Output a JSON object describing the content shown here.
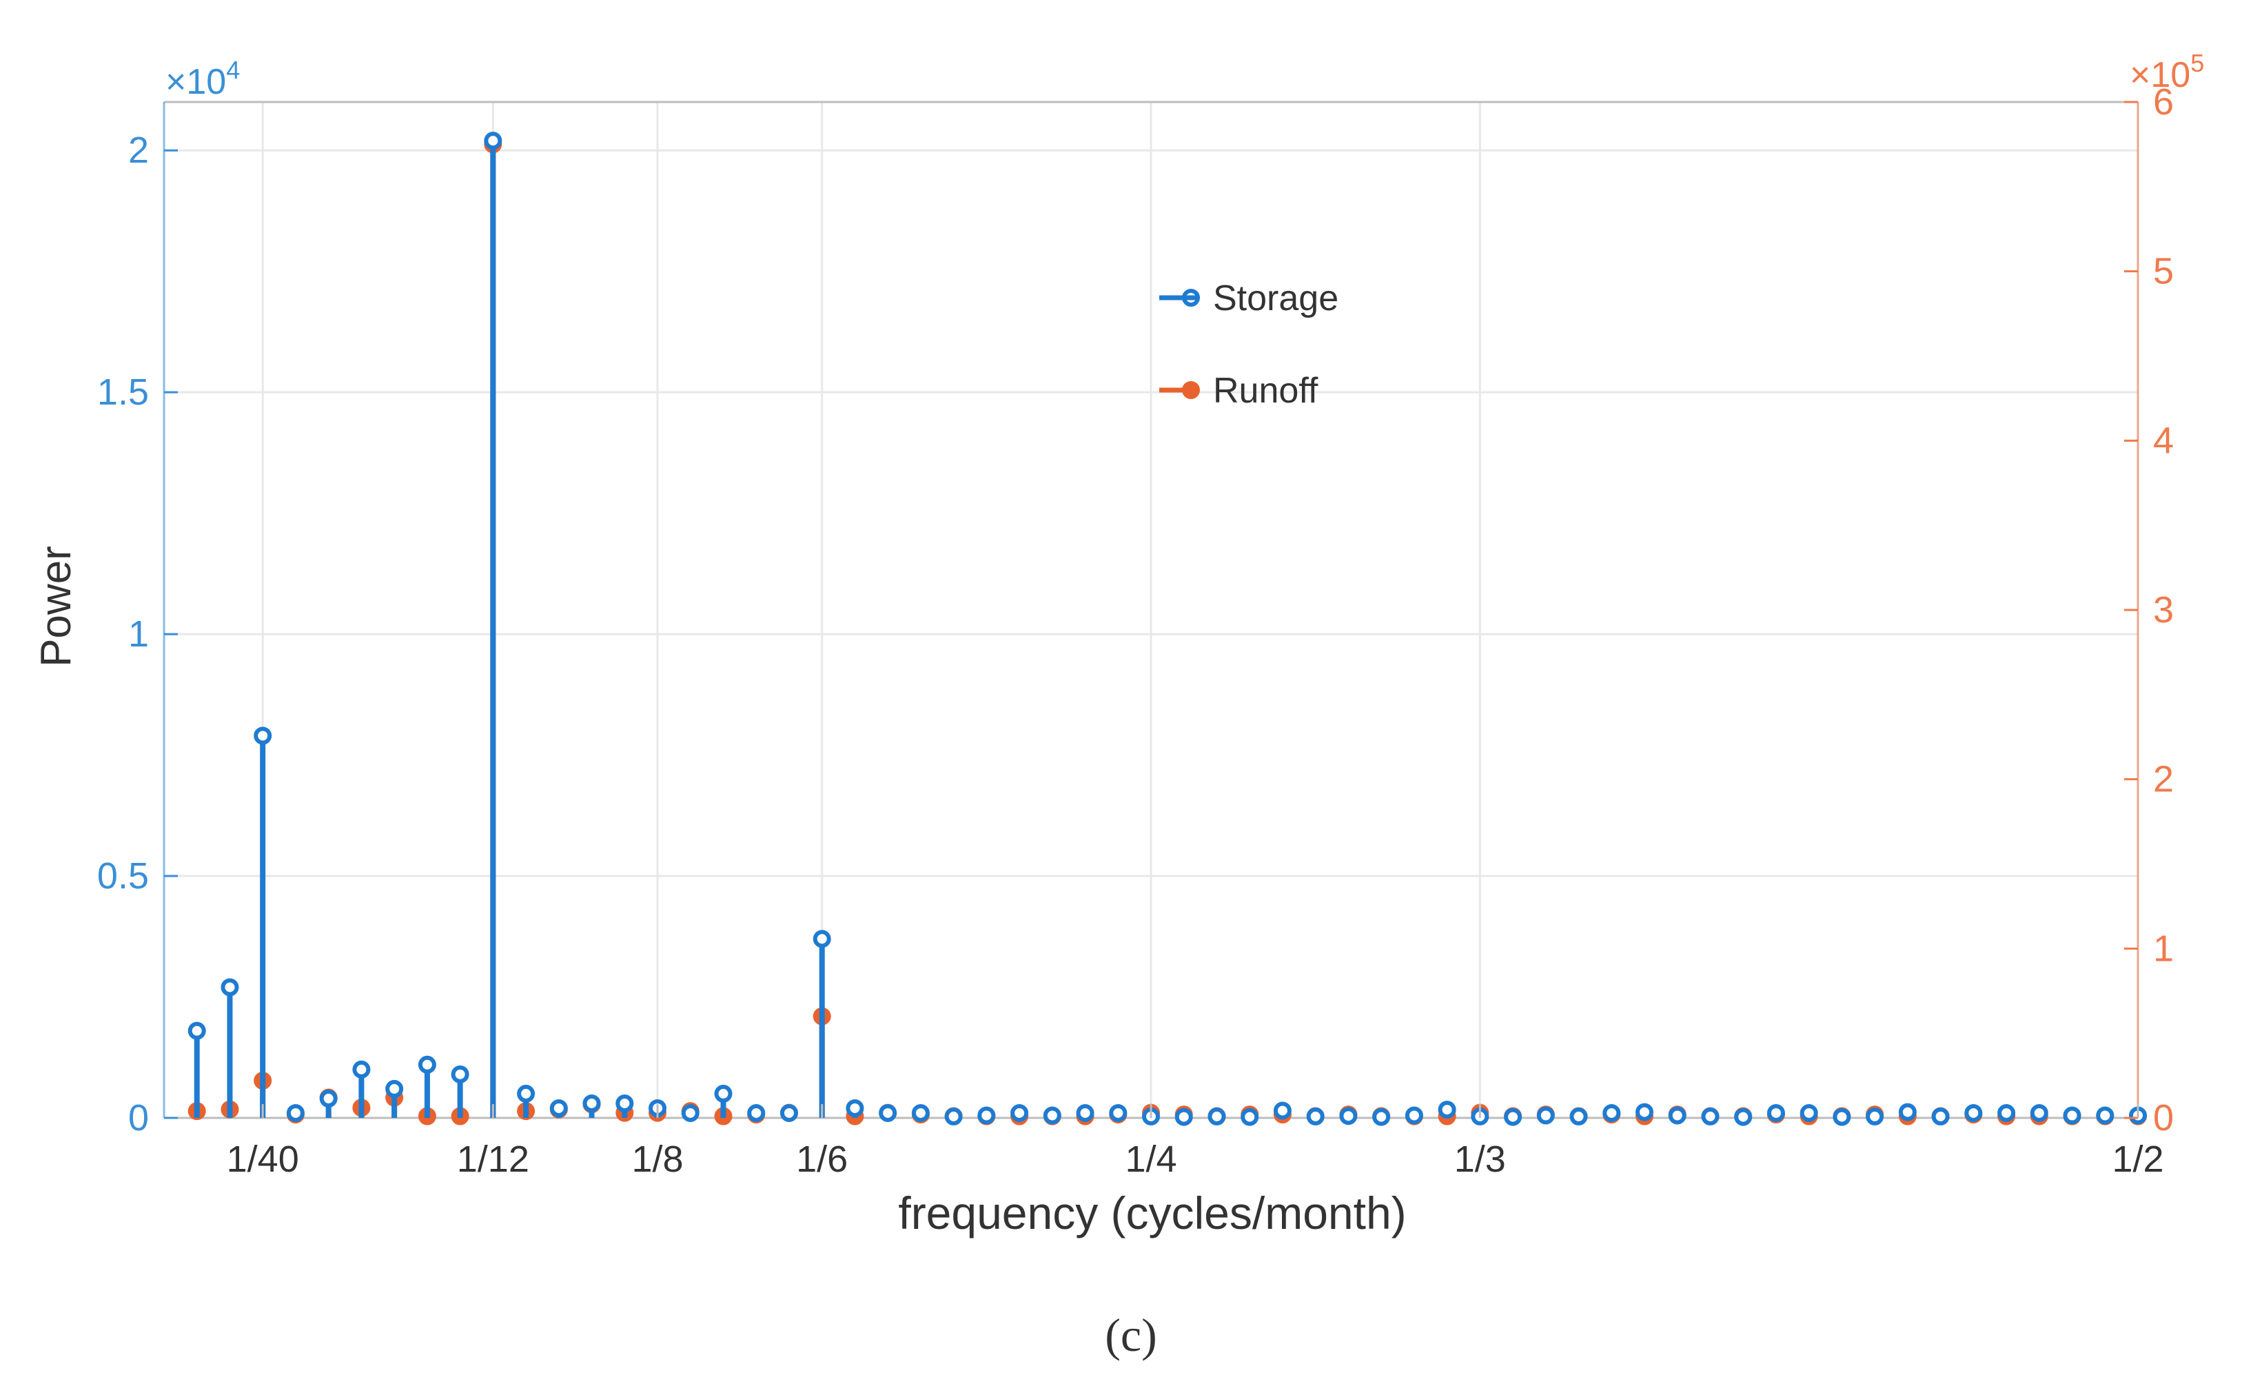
{
  "colors": {
    "storage": "#1f7bd1",
    "runoff": "#e8622e",
    "left_axis": "#3a8fd6",
    "right_axis": "#ef7a4b",
    "grid": "#e8e8e8",
    "axis_line": "#bdbdbd",
    "text": "#333333"
  },
  "caption": "(c)",
  "chart_data": {
    "type": "stem",
    "xlabel": "frequency (cycles/month)",
    "ylabel_left": "Power",
    "ylabel_right": "",
    "x_tick_labels": [
      {
        "value": 0.025,
        "label": "1/40"
      },
      {
        "value": 0.08333,
        "label": "1/12"
      },
      {
        "value": 0.125,
        "label": "1/8"
      },
      {
        "value": 0.16667,
        "label": "1/6"
      },
      {
        "value": 0.25,
        "label": "1/4"
      },
      {
        "value": 0.33333,
        "label": "1/3"
      },
      {
        "value": 0.5,
        "label": "1/2"
      }
    ],
    "xlim": [
      0.0,
      0.5
    ],
    "y_left": {
      "multiplier": "×10",
      "exponent": "4",
      "ticks": [
        0,
        0.5,
        1,
        1.5,
        2
      ],
      "tick_labels": [
        "0",
        "0.5",
        "1",
        "1.5",
        "2"
      ],
      "ylim": [
        0,
        2.1
      ]
    },
    "y_right": {
      "multiplier": "×10",
      "exponent": "5",
      "ticks": [
        0,
        1,
        2,
        3,
        4,
        5,
        6
      ],
      "tick_labels": [
        "0",
        "1",
        "2",
        "3",
        "4",
        "5",
        "6"
      ],
      "ylim": [
        0,
        6
      ]
    },
    "legend": {
      "position": "top-center",
      "entries": [
        "Storage",
        "Runoff"
      ]
    },
    "grid": true,
    "x": [
      0.00833,
      0.01667,
      0.025,
      0.03333,
      0.04167,
      0.05,
      0.05833,
      0.06667,
      0.075,
      0.08333,
      0.09167,
      0.1,
      0.10833,
      0.11667,
      0.125,
      0.13333,
      0.14167,
      0.15,
      0.15833,
      0.16667,
      0.175,
      0.18333,
      0.19167,
      0.2,
      0.20833,
      0.21667,
      0.225,
      0.23333,
      0.24167,
      0.25,
      0.25833,
      0.26667,
      0.275,
      0.28333,
      0.29167,
      0.3,
      0.30833,
      0.31667,
      0.325,
      0.33333,
      0.34167,
      0.35,
      0.35833,
      0.36667,
      0.375,
      0.38333,
      0.39167,
      0.4,
      0.40833,
      0.41667,
      0.425,
      0.43333,
      0.44167,
      0.45,
      0.45833,
      0.46667,
      0.475,
      0.48333,
      0.49167,
      0.5
    ],
    "series": [
      {
        "name": "Storage",
        "axis": "left",
        "values": [
          0.18,
          0.27,
          0.79,
          0.01,
          0.04,
          0.1,
          0.06,
          0.11,
          0.09,
          2.02,
          0.05,
          0.02,
          0.03,
          0.03,
          0.02,
          0.01,
          0.05,
          0.01,
          0.01,
          0.37,
          0.02,
          0.01,
          0.01,
          0.003,
          0.005,
          0.01,
          0.005,
          0.01,
          0.01,
          0.003,
          0.002,
          0.003,
          0.002,
          0.015,
          0.003,
          0.004,
          0.002,
          0.005,
          0.017,
          0.003,
          0.002,
          0.005,
          0.003,
          0.01,
          0.012,
          0.005,
          0.003,
          0.002,
          0.01,
          0.01,
          0.002,
          0.003,
          0.012,
          0.003,
          0.01,
          0.01,
          0.01,
          0.005,
          0.005,
          0.005
        ]
      },
      {
        "name": "Runoff",
        "axis": "right",
        "values": [
          0.04,
          0.05,
          0.22,
          0.02,
          0.12,
          0.06,
          0.12,
          0.01,
          0.01,
          5.75,
          0.04,
          0.05,
          0.08,
          0.03,
          0.03,
          0.04,
          0.01,
          0.02,
          0.03,
          0.6,
          0.01,
          0.03,
          0.02,
          0.01,
          0.01,
          0.01,
          0.01,
          0.01,
          0.02,
          0.03,
          0.02,
          0.01,
          0.02,
          0.02,
          0.01,
          0.02,
          0.01,
          0.01,
          0.01,
          0.03,
          0.01,
          0.02,
          0.01,
          0.02,
          0.01,
          0.02,
          0.01,
          0.01,
          0.02,
          0.01,
          0.01,
          0.02,
          0.01,
          0.01,
          0.02,
          0.01,
          0.01,
          0.01,
          0.01,
          0.01
        ]
      }
    ]
  }
}
